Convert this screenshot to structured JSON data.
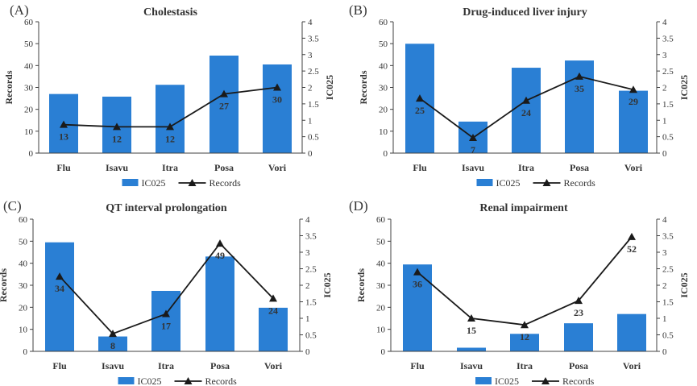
{
  "chart_data": [
    {
      "type": "bar+line",
      "panel_label": "(A)",
      "title": "Cholestasis",
      "categories": [
        "Flu",
        "Isavu",
        "Itra",
        "Posa",
        "Vori"
      ],
      "bar_series": {
        "name": "IC025",
        "axis": "right",
        "values": [
          1.8,
          1.72,
          2.08,
          2.97,
          2.7
        ]
      },
      "line_series": {
        "name": "Records",
        "axis": "left",
        "values": [
          13,
          12,
          12,
          27,
          30
        ],
        "labels": [
          "13",
          "12",
          "12",
          "27",
          "30"
        ]
      },
      "left_axis": {
        "label": "Records",
        "ticks": [
          0,
          10,
          20,
          30,
          40,
          50,
          60
        ],
        "range": [
          0,
          60
        ]
      },
      "right_axis": {
        "label": "IC025",
        "ticks": [
          "0",
          "0.5",
          "1",
          "1.5",
          "2",
          "2.5",
          "3",
          "3.5",
          "4"
        ],
        "range": [
          0,
          4
        ]
      },
      "legend": {
        "bar": "IC025",
        "line": "Records"
      }
    },
    {
      "type": "bar+line",
      "panel_label": "(B)",
      "title": "Drug-induced liver injury",
      "categories": [
        "Flu",
        "Isavu",
        "Itra",
        "Posa",
        "Vori"
      ],
      "bar_series": {
        "name": "IC025",
        "axis": "right",
        "values": [
          3.33,
          0.96,
          2.6,
          2.82,
          1.9
        ]
      },
      "line_series": {
        "name": "Records",
        "axis": "left",
        "values": [
          25,
          7,
          24,
          35,
          29
        ],
        "labels": [
          "25",
          "7",
          "24",
          "35",
          "29"
        ]
      },
      "left_axis": {
        "label": "Records",
        "ticks": [
          0,
          10,
          20,
          30,
          40,
          50,
          60
        ],
        "range": [
          0,
          60
        ]
      },
      "right_axis": {
        "label": "IC025",
        "ticks": [
          "0",
          "0.5",
          "1",
          "1.5",
          "2",
          "2.5",
          "3",
          "3.5",
          "4"
        ],
        "range": [
          0,
          4
        ]
      },
      "legend": {
        "bar": "IC025",
        "line": "Records"
      }
    },
    {
      "type": "bar+line",
      "panel_label": "(C)",
      "title": "QT interval prolongation",
      "categories": [
        "Flu",
        "Isavu",
        "Itra",
        "Posa",
        "Vori"
      ],
      "bar_series": {
        "name": "IC025",
        "axis": "right",
        "values": [
          3.3,
          0.45,
          1.83,
          2.87,
          1.32
        ]
      },
      "line_series": {
        "name": "Records",
        "axis": "left",
        "values": [
          34,
          8,
          17,
          49,
          24
        ],
        "labels": [
          "34",
          "8",
          "17",
          "49",
          "24"
        ]
      },
      "left_axis": {
        "label": "Records",
        "ticks": [
          0,
          10,
          20,
          30,
          40,
          50,
          60
        ],
        "range": [
          0,
          60
        ]
      },
      "right_axis": {
        "label": "IC025",
        "ticks": [
          "0",
          "0.5",
          "1",
          "1.5",
          "2",
          "2.5",
          "3",
          "3.5",
          "4"
        ],
        "range": [
          0,
          4
        ]
      },
      "legend": {
        "bar": "IC025",
        "line": "Records"
      }
    },
    {
      "type": "bar+line",
      "panel_label": "(D)",
      "title": "Renal impairment",
      "categories": [
        "Flu",
        "Isavu",
        "Itra",
        "Posa",
        "Vori"
      ],
      "bar_series": {
        "name": "IC025",
        "axis": "right",
        "values": [
          2.63,
          0.11,
          0.53,
          0.85,
          1.13
        ]
      },
      "line_series": {
        "name": "Records",
        "axis": "left",
        "values": [
          36,
          15,
          12,
          23,
          52
        ],
        "labels": [
          "36",
          "15",
          "12",
          "23",
          "52"
        ]
      },
      "left_axis": {
        "label": "Records",
        "ticks": [
          0,
          10,
          20,
          30,
          40,
          50,
          60
        ],
        "range": [
          0,
          60
        ]
      },
      "right_axis": {
        "label": "IC025",
        "ticks": [
          "0",
          "0.5",
          "1",
          "1.5",
          "2",
          "2.5",
          "3",
          "3.5",
          "4"
        ],
        "range": [
          0,
          4
        ]
      },
      "legend": {
        "bar": "IC025",
        "line": "Records"
      }
    }
  ],
  "colors": {
    "bar": "#2a7fd4",
    "line": "#1a1a1a",
    "axis": "#404040",
    "text": "#333333",
    "title": "#333333"
  }
}
